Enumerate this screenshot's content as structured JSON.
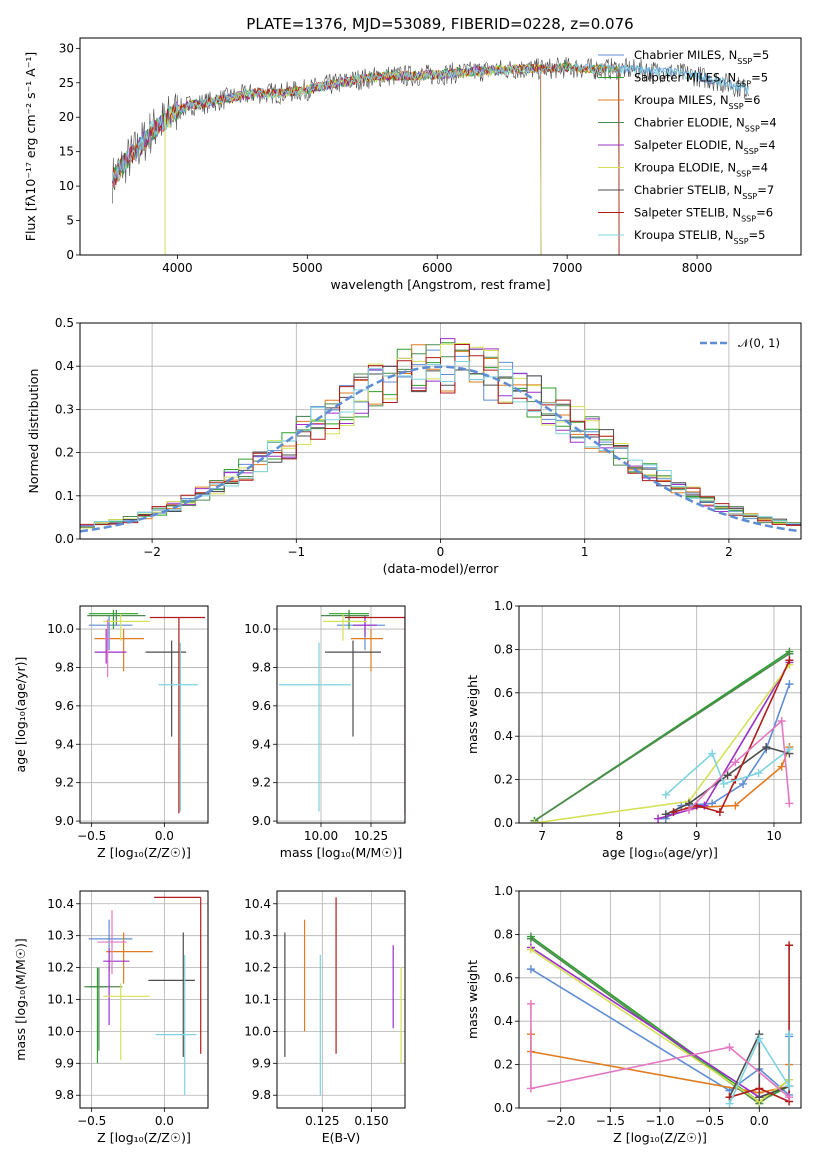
{
  "figure": {
    "title": "PLATE=1376, MJD=53089, FIBERID=0228, z=0.076"
  },
  "models": [
    {
      "name": "Chabrier MILES",
      "nssp": "5",
      "color": "#5f8dd3"
    },
    {
      "name": "Salpeter MILES",
      "nssp": "5",
      "color": "#2ca02c"
    },
    {
      "name": "Kroupa MILES",
      "nssp": "6",
      "color": "#e07b20"
    },
    {
      "name": "Chabrier ELODIE",
      "nssp": "4",
      "color": "#4f8a50"
    },
    {
      "name": "Salpeter ELODIE",
      "nssp": "4",
      "color": "#9b30c8"
    },
    {
      "name": "Kroupa ELODIE",
      "nssp": "4",
      "color": "#d4e157"
    },
    {
      "name": "Chabrier STELIB",
      "nssp": "7",
      "color": "#4d4d4d"
    },
    {
      "name": "Salpeter STELIB",
      "nssp": "6",
      "color": "#b01c1c"
    },
    {
      "name": "Kroupa STELIB",
      "nssp": "5",
      "color": "#7fd3e0"
    }
  ],
  "chart_data": [
    {
      "type": "line",
      "xlabel": "wavelength [Angstrom, rest frame]",
      "ylabel": "Flux [fλ10⁻¹⁷ erg cm⁻² s⁻¹ A⁻¹]",
      "xlim": [
        3250,
        8800
      ],
      "ylim": [
        0,
        31.5
      ],
      "xticks": [
        "4000",
        "5000",
        "6000",
        "7000",
        "8000"
      ],
      "xtick_values": [
        4000,
        5000,
        6000,
        7000,
        8000
      ],
      "yticks": [
        "0",
        "5",
        "10",
        "15",
        "20",
        "25",
        "30"
      ],
      "ytick_values": [
        0,
        5,
        10,
        15,
        20,
        25,
        30
      ],
      "grid": false,
      "legend": "top-right",
      "spectrum_continuum": {
        "x": [
          3500,
          3600,
          3700,
          3800,
          3900,
          4000,
          4100,
          4200,
          4400,
          4600,
          4800,
          5000,
          5200,
          5400,
          5600,
          5800,
          6000,
          6200,
          6400,
          6600,
          6800,
          7000,
          7200,
          7400,
          7600,
          7800,
          8000,
          8200,
          8400
        ],
        "y": [
          11,
          13.5,
          15.5,
          18,
          19.5,
          21,
          21.8,
          22,
          22.8,
          23.5,
          23.5,
          24,
          24.8,
          25.5,
          26,
          26,
          26.2,
          26.5,
          26.8,
          27,
          27,
          27.2,
          27,
          27,
          26.8,
          26.5,
          26,
          25,
          24
        ]
      },
      "model_ranges": [
        [
          3500,
          8400
        ],
        [
          3500,
          7400
        ],
        [
          3500,
          7400
        ],
        [
          3500,
          6800
        ],
        [
          3500,
          6800
        ],
        [
          3900,
          6800
        ],
        [
          3500,
          8400
        ],
        [
          3500,
          7400
        ],
        [
          3500,
          8400
        ]
      ]
    },
    {
      "type": "bar",
      "subtype": "step-histogram",
      "xlabel": "(data-model)/error",
      "ylabel": "Normed distribution",
      "xlim": [
        -2.5,
        2.5
      ],
      "ylim": [
        0,
        0.5
      ],
      "xticks": [
        "−2",
        "−1",
        "0",
        "1",
        "2"
      ],
      "xtick_values": [
        -2,
        -1,
        0,
        1,
        2
      ],
      "yticks": [
        "0.0",
        "0.1",
        "0.2",
        "0.3",
        "0.4",
        "0.5"
      ],
      "ytick_values": [
        0,
        0.1,
        0.2,
        0.3,
        0.4,
        0.5
      ],
      "grid": true,
      "legend": "top-right",
      "reference_curve": {
        "name": "𝒩(0, 1)",
        "color": "#5f8dd3",
        "style": "dashed"
      },
      "bin_edges_range": [
        -2.5,
        2.5
      ],
      "bin_count": 50,
      "series_base": [
        0.03,
        0.035,
        0.04,
        0.045,
        0.055,
        0.065,
        0.075,
        0.09,
        0.105,
        0.12,
        0.14,
        0.16,
        0.18,
        0.2,
        0.22,
        0.245,
        0.265,
        0.29,
        0.31,
        0.33,
        0.35,
        0.365,
        0.38,
        0.39,
        0.395,
        0.4,
        0.395,
        0.39,
        0.38,
        0.365,
        0.35,
        0.33,
        0.31,
        0.29,
        0.265,
        0.245,
        0.22,
        0.2,
        0.18,
        0.16,
        0.14,
        0.12,
        0.105,
        0.09,
        0.075,
        0.065,
        0.055,
        0.045,
        0.04,
        0.035
      ]
    },
    {
      "type": "scatter",
      "subtype": "errorbar",
      "xlabel": "Z [log₁₀(Z/Z☉)]",
      "ylabel": "age  [log₁₀(age/yr)]",
      "xlim": [
        -0.58,
        0.3
      ],
      "ylim": [
        8.99,
        10.12
      ],
      "xticks": [
        "−0.5",
        "0.0"
      ],
      "xtick_values": [
        -0.5,
        0.0
      ],
      "yticks": [
        "9.0",
        "9.2",
        "9.4",
        "9.6",
        "9.8",
        "10.0"
      ],
      "ytick_values": [
        9.0,
        9.2,
        9.4,
        9.6,
        9.8,
        10.0
      ],
      "grid": true,
      "points": [
        {
          "x": -0.38,
          "xerr": [
            0.14,
            0.16
          ],
          "y": 10.02,
          "yerr": [
            0.13,
            0.05
          ]
        },
        {
          "x": -0.35,
          "xerr": [
            0.17,
            0.17
          ],
          "y": 10.08,
          "yerr": [
            0.08,
            0.02
          ]
        },
        {
          "x": -0.28,
          "xerr": [
            0.2,
            0.14
          ],
          "y": 9.95,
          "yerr": [
            0.17,
            0.05
          ]
        },
        {
          "x": -0.33,
          "xerr": [
            0.2,
            0.2
          ],
          "y": 10.07,
          "yerr": [
            0.05,
            0.03
          ]
        },
        {
          "x": -0.4,
          "xerr": [
            0.08,
            0.14
          ],
          "y": 9.88,
          "yerr": [
            0.06,
            0.12
          ]
        },
        {
          "x": -0.3,
          "xerr": [
            0.12,
            0.2
          ],
          "y": 10.04,
          "yerr": [
            0.1,
            0.04
          ]
        },
        {
          "x": 0.05,
          "xerr": [
            0.18,
            0.1
          ],
          "y": 9.88,
          "yerr": [
            0.44,
            0.06
          ]
        },
        {
          "x": 0.1,
          "xerr": [
            0.2,
            0.18
          ],
          "y": 10.06,
          "yerr": [
            1.02,
            0.0
          ]
        },
        {
          "x": 0.11,
          "xerr": [
            0.15,
            0.12
          ],
          "y": 9.71,
          "yerr": [
            0.66,
            0.22
          ]
        },
        {
          "x": -0.39,
          "xerr": [
            0.02,
            0.02
          ],
          "y": 9.95,
          "yerr": [
            0.2,
            0.1
          ]
        }
      ]
    },
    {
      "type": "scatter",
      "subtype": "errorbar",
      "xlabel": "mass [log₁₀(M/M☉)]",
      "ylabel": "",
      "xlim": [
        9.78,
        10.42
      ],
      "ylim": [
        8.99,
        10.12
      ],
      "xticks": [
        "10.00",
        "10.25"
      ],
      "xtick_values": [
        10.0,
        10.25
      ],
      "yticks": [
        "9.0",
        "9.2",
        "9.4",
        "9.6",
        "9.8",
        "10.0"
      ],
      "ytick_values": [
        9.0,
        9.2,
        9.4,
        9.6,
        9.8,
        10.0
      ],
      "grid": true,
      "points": [
        {
          "x": 10.22,
          "xerr": [
            0.14,
            0.1
          ],
          "y": 10.02,
          "yerr": [
            0.13,
            0.05
          ]
        },
        {
          "x": 10.14,
          "xerr": [
            0.1,
            0.1
          ],
          "y": 10.08,
          "yerr": [
            0.08,
            0.02
          ]
        },
        {
          "x": 10.25,
          "xerr": [
            0.1,
            0.06
          ],
          "y": 9.95,
          "yerr": [
            0.17,
            0.05
          ]
        },
        {
          "x": 10.14,
          "xerr": [
            0.14,
            0.1
          ],
          "y": 10.07,
          "yerr": [
            0.05,
            0.03
          ]
        },
        {
          "x": 10.22,
          "xerr": [
            0.06,
            0.06
          ],
          "y": 10.02,
          "yerr": [
            0.06,
            0.05
          ]
        },
        {
          "x": 10.11,
          "xerr": [
            0.1,
            0.12
          ],
          "y": 10.04,
          "yerr": [
            0.1,
            0.04
          ]
        },
        {
          "x": 10.16,
          "xerr": [
            0.14,
            0.14
          ],
          "y": 9.88,
          "yerr": [
            0.44,
            0.06
          ]
        },
        {
          "x": 10.42,
          "xerr": [
            0.3,
            0.0
          ],
          "y": 10.06,
          "yerr": [
            1.02,
            0.0
          ]
        },
        {
          "x": 9.99,
          "xerr": [
            0.2,
            0.16
          ],
          "y": 9.71,
          "yerr": [
            0.66,
            0.22
          ]
        }
      ]
    },
    {
      "type": "line",
      "xlabel": "age  [log₁₀(age/yr)]",
      "ylabel": "mass weight",
      "xlim": [
        6.7,
        10.35
      ],
      "ylim": [
        0,
        1
      ],
      "xticks": [
        "7",
        "8",
        "9",
        "10"
      ],
      "xtick_values": [
        7,
        8,
        9,
        10
      ],
      "yticks": [
        "0.0",
        "0.2",
        "0.4",
        "0.6",
        "0.8",
        "1.0"
      ],
      "ytick_values": [
        0,
        0.2,
        0.4,
        0.6,
        0.8,
        1.0
      ],
      "grid": true,
      "series": [
        {
          "x": [
            8.6,
            8.8,
            9.2,
            9.6,
            9.9,
            10.2
          ],
          "y": [
            0.02,
            0.08,
            0.09,
            0.18,
            0.34,
            0.64
          ]
        },
        {
          "x": [
            6.9,
            10.2
          ],
          "y": [
            0.01,
            0.79
          ]
        },
        {
          "x": [
            8.9,
            9.5,
            10.1,
            10.2
          ],
          "y": [
            0.07,
            0.08,
            0.26,
            0.35
          ]
        },
        {
          "x": [
            6.9,
            10.2
          ],
          "y": [
            0.01,
            0.78
          ]
        },
        {
          "x": [
            8.5,
            9.1,
            10.2
          ],
          "y": [
            0.02,
            0.08,
            0.74
          ]
        },
        {
          "x": [
            6.9,
            8.9,
            10.2
          ],
          "y": [
            0.0,
            0.1,
            0.73
          ]
        },
        {
          "x": [
            8.6,
            8.9,
            9.4,
            9.9,
            10.2
          ],
          "y": [
            0.04,
            0.09,
            0.22,
            0.35,
            0.32
          ]
        },
        {
          "x": [
            8.7,
            9.0,
            9.3,
            9.5,
            10.2
          ],
          "y": [
            0.05,
            0.08,
            0.05,
            0.2,
            0.75
          ]
        },
        {
          "x": [
            8.6,
            9.2,
            9.35,
            9.8,
            10.2
          ],
          "y": [
            0.13,
            0.32,
            0.18,
            0.23,
            0.34
          ]
        },
        {
          "x": [
            8.9,
            9.5,
            10.1,
            10.2
          ],
          "y": [
            0.06,
            0.28,
            0.47,
            0.09
          ]
        }
      ]
    },
    {
      "type": "scatter",
      "subtype": "errorbar",
      "xlabel": "Z [log₁₀(Z/Z☉)]",
      "ylabel": "mass [log₁₀(M/M☉)]",
      "xlim": [
        -0.58,
        0.3
      ],
      "ylim": [
        9.76,
        10.44
      ],
      "xticks": [
        "−0.5",
        "0.0"
      ],
      "xtick_values": [
        -0.5,
        0.0
      ],
      "yticks": [
        "9.8",
        "9.9",
        "10.0",
        "10.1",
        "10.2",
        "10.3",
        "10.4"
      ],
      "ytick_values": [
        9.8,
        9.9,
        10.0,
        10.1,
        10.2,
        10.3,
        10.4
      ],
      "grid": true,
      "points": [
        {
          "x": -0.38,
          "xerr": [
            0.14,
            0.16
          ],
          "y": 10.29,
          "yerr": [
            0.1,
            0.06
          ]
        },
        {
          "x": -0.46,
          "xerr": [
            0.06,
            0.06
          ],
          "y": 10.14,
          "yerr": [
            0.24,
            0.06
          ]
        },
        {
          "x": -0.28,
          "xerr": [
            0.12,
            0.2
          ],
          "y": 10.25,
          "yerr": [
            0.1,
            0.06
          ]
        },
        {
          "x": -0.45,
          "xerr": [
            0.1,
            0.16
          ],
          "y": 10.14,
          "yerr": [
            0.2,
            0.06
          ]
        },
        {
          "x": -0.38,
          "xerr": [
            0.04,
            0.14
          ],
          "y": 10.22,
          "yerr": [
            0.2,
            0.04
          ]
        },
        {
          "x": -0.3,
          "xerr": [
            0.12,
            0.2
          ],
          "y": 10.11,
          "yerr": [
            0.2,
            0.04
          ]
        },
        {
          "x": 0.13,
          "xerr": [
            0.24,
            0.08
          ],
          "y": 10.16,
          "yerr": [
            0.24,
            0.15
          ]
        },
        {
          "x": 0.25,
          "xerr": [
            0.32,
            0.0
          ],
          "y": 10.42,
          "yerr": [
            0.49,
            0.0
          ]
        },
        {
          "x": 0.14,
          "xerr": [
            0.2,
            0.08
          ],
          "y": 9.99,
          "yerr": [
            0.19,
            0.25
          ]
        },
        {
          "x": -0.36,
          "xerr": [
            0.1,
            0.1
          ],
          "y": 10.28,
          "yerr": [
            0.1,
            0.1
          ]
        }
      ]
    },
    {
      "type": "scatter",
      "subtype": "errorbar",
      "xlabel": "E(B-V)",
      "ylabel": "",
      "xlim": [
        0.102,
        0.167
      ],
      "ylim": [
        9.76,
        10.44
      ],
      "xticks": [
        "0.125",
        "0.150"
      ],
      "xtick_values": [
        0.125,
        0.15
      ],
      "yticks": [
        "9.8",
        "9.9",
        "10.0",
        "10.1",
        "10.2",
        "10.3",
        "10.4"
      ],
      "ytick_values": [
        9.8,
        9.9,
        10.0,
        10.1,
        10.2,
        10.3,
        10.4
      ],
      "grid": true,
      "points": [
        {
          "x": 0.116,
          "yerr": [
            0.14,
            0.21
          ],
          "y": 10.14
        },
        {
          "x": 0.106,
          "yerr": [
            0.39,
            0.0
          ],
          "y": 10.31
        },
        {
          "x": 0.124,
          "yerr": [
            0.44,
            0.0
          ],
          "y": 10.24
        },
        {
          "x": 0.128,
          "yerr": [
            0.0,
            0.0
          ],
          "y": 10.38
        },
        {
          "x": 0.161,
          "yerr": [
            0.26,
            0.0
          ],
          "y": 10.27
        },
        {
          "x": 0.165,
          "yerr": [
            0.3,
            0.0
          ],
          "y": 10.2
        },
        {
          "x": 0.132,
          "yerr": [
            0.49,
            0.0
          ],
          "y": 10.42
        }
      ],
      "point_colors": [
        "#e07b20",
        "#4d4d4d",
        "#7fd3e0",
        "#e377c2",
        "#9b30c8",
        "#d4e157",
        "#b01c1c"
      ]
    },
    {
      "type": "line",
      "xlabel": "Z [log₁₀(Z/Z☉)]",
      "ylabel": "mass weight",
      "xlim": [
        -2.42,
        0.42
      ],
      "ylim": [
        0,
        1
      ],
      "xticks": [
        "−2.0",
        "−1.5",
        "−1.0",
        "−0.5",
        "0.0"
      ],
      "xtick_values": [
        -2.0,
        -1.5,
        -1.0,
        -0.5,
        0.0
      ],
      "yticks": [
        "0.0",
        "0.2",
        "0.4",
        "0.6",
        "0.8",
        "1.0"
      ],
      "ytick_values": [
        0,
        0.2,
        0.4,
        0.6,
        0.8,
        1.0
      ],
      "grid": true,
      "series": [
        {
          "x": [
            -2.3,
            -0.3,
            0.0,
            0.3,
            0.3
          ],
          "y": [
            0.64,
            0.08,
            0.18,
            0.06,
            0.33
          ]
        },
        {
          "x": [
            -2.3,
            0.0,
            0.3
          ],
          "y": [
            0.79,
            0.03,
            0.1
          ]
        },
        {
          "x": [
            -2.3,
            -2.3,
            0.0,
            0.3,
            0.3
          ],
          "y": [
            0.34,
            0.26,
            0.07,
            0.1,
            0.2
          ]
        },
        {
          "x": [
            -2.3,
            0.0,
            0.3
          ],
          "y": [
            0.78,
            0.02,
            0.13
          ]
        },
        {
          "x": [
            -2.3,
            0.0,
            0.3
          ],
          "y": [
            0.74,
            0.05,
            0.1
          ]
        },
        {
          "x": [
            -2.3,
            0.0,
            0.3
          ],
          "y": [
            0.73,
            0.03,
            0.13
          ]
        },
        {
          "x": [
            -0.3,
            0.0,
            0.0,
            0.3
          ],
          "y": [
            0.05,
            0.34,
            0.05,
            0.1
          ]
        },
        {
          "x": [
            -0.3,
            0.0,
            0.3,
            0.3
          ],
          "y": [
            0.05,
            0.09,
            0.03,
            0.75
          ]
        },
        {
          "x": [
            -0.3,
            0.0,
            0.3,
            0.3
          ],
          "y": [
            0.02,
            0.32,
            0.1,
            0.34
          ]
        },
        {
          "x": [
            -2.3,
            -2.3,
            -0.3,
            0.3
          ],
          "y": [
            0.48,
            0.09,
            0.28,
            0.05
          ]
        }
      ],
      "series_colors": [
        "#5f8dd3",
        "#2ca02c",
        "#e07b20",
        "#4f8a50",
        "#9b30c8",
        "#d4e157",
        "#4d4d4d",
        "#b01c1c",
        "#7fd3e0",
        "#e377c2"
      ]
    }
  ]
}
